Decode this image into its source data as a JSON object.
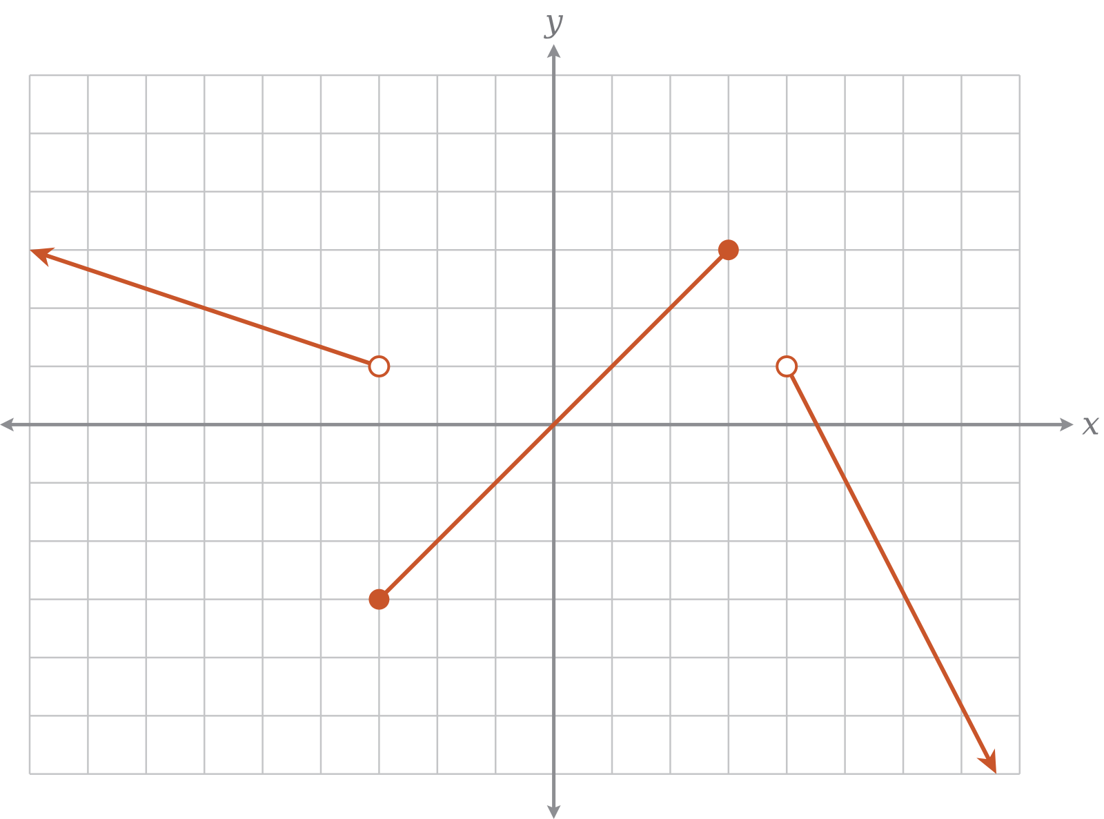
{
  "chart_data": {
    "type": "line",
    "title": "",
    "xlabel": "x",
    "ylabel": "y",
    "xlim": [
      -9,
      8
    ],
    "ylim": [
      -6,
      6
    ],
    "grid": true,
    "colors": {
      "curve": "#c9552a",
      "grid": "#c4c5c7",
      "axis": "#8d8e92",
      "label": "#77787c"
    },
    "pieces": [
      {
        "kind": "ray",
        "from": [
          -3,
          1
        ],
        "to": [
          -9,
          3
        ],
        "endpoint": "open",
        "arrow": "end"
      },
      {
        "kind": "segment",
        "from": [
          -3,
          -3
        ],
        "to": [
          3,
          3
        ],
        "start_endpoint": "closed",
        "end_endpoint": "closed"
      },
      {
        "kind": "ray",
        "from": [
          4,
          1
        ],
        "to": [
          7.6,
          -6
        ],
        "endpoint": "open",
        "arrow": "end"
      }
    ]
  }
}
